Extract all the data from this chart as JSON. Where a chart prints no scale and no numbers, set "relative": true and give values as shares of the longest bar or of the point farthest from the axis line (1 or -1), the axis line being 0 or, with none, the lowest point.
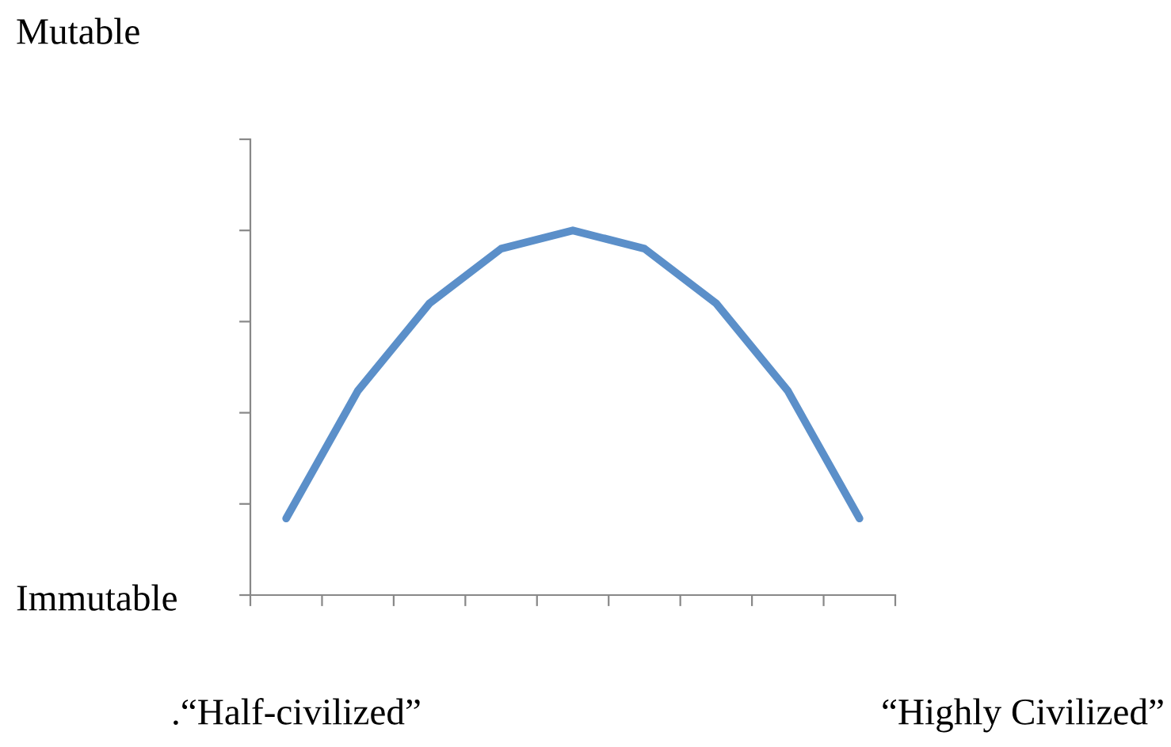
{
  "chart_data": {
    "type": "line",
    "relative": true,
    "categories": [
      null,
      null,
      null,
      null,
      null,
      null,
      null,
      null,
      null
    ],
    "series": [
      {
        "color": "#5b8fc9",
        "values": [
          0.21,
          0.56,
          0.8,
          0.95,
          1,
          0.95,
          0.8,
          0.56,
          0.21
        ]
      }
    ],
    "annotations": [
      "Mutable",
      "Immutable",
      ".“Half-civilized”",
      "“Highly Civilized”"
    ],
    "grid": false,
    "legend": false,
    "marker": "none",
    "line_style": "solid"
  }
}
